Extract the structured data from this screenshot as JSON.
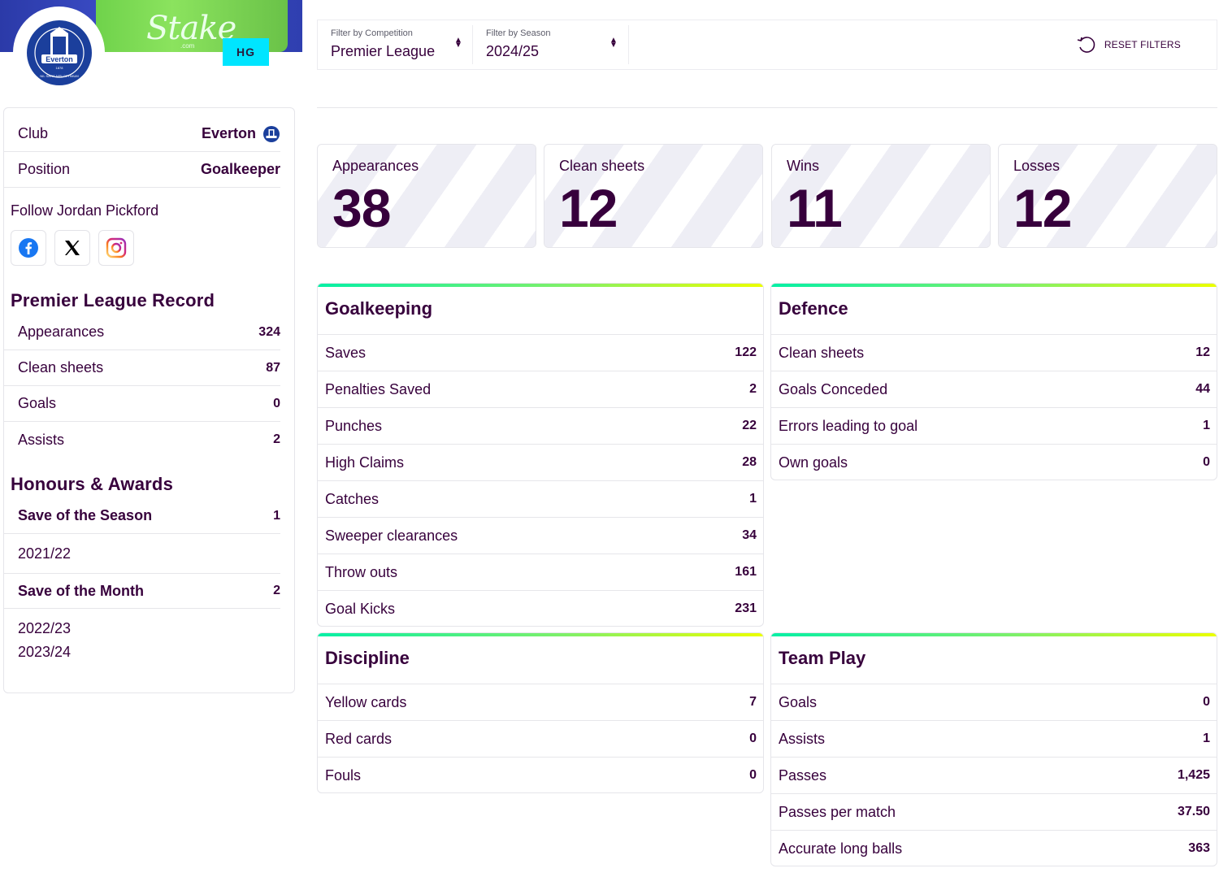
{
  "banner": {
    "sponsor_text": "Stake",
    "sponsor_sub": ".com",
    "hg_badge": "HG"
  },
  "club_badge": {
    "name": "Everton",
    "year": "1878",
    "motto": "NIL SATIS NISI OPTIMUM"
  },
  "profile": {
    "club_label": "Club",
    "club_value": "Everton",
    "position_label": "Position",
    "position_value": "Goalkeeper",
    "follow_text": "Follow Jordan Pickford",
    "socials": [
      "facebook-icon",
      "x-icon",
      "instagram-icon"
    ]
  },
  "pl_record": {
    "title": "Premier League Record",
    "rows": [
      {
        "label": "Appearances",
        "value": "324"
      },
      {
        "label": "Clean sheets",
        "value": "87"
      },
      {
        "label": "Goals",
        "value": "0"
      },
      {
        "label": "Assists",
        "value": "2"
      }
    ]
  },
  "honours": {
    "title": "Honours & Awards",
    "awards": [
      {
        "label": "Save of the Season",
        "count": "1",
        "seasons": [
          "2021/22"
        ]
      },
      {
        "label": "Save of the Month",
        "count": "2",
        "seasons": [
          "2022/23",
          "2023/24"
        ]
      }
    ]
  },
  "filters": {
    "competition_label": "Filter by Competition",
    "competition_value": "Premier League",
    "season_label": "Filter by Season",
    "season_value": "2024/25",
    "reset_label": "RESET FILTERS"
  },
  "top_stats": [
    {
      "label": "Appearances",
      "value": "38"
    },
    {
      "label": "Clean sheets",
      "value": "12"
    },
    {
      "label": "Wins",
      "value": "11"
    },
    {
      "label": "Losses",
      "value": "12"
    }
  ],
  "goalkeeping": {
    "title": "Goalkeeping",
    "rows": [
      {
        "label": "Saves",
        "value": "122"
      },
      {
        "label": "Penalties Saved",
        "value": "2"
      },
      {
        "label": "Punches",
        "value": "22"
      },
      {
        "label": "High Claims",
        "value": "28"
      },
      {
        "label": "Catches",
        "value": "1"
      },
      {
        "label": "Sweeper clearances",
        "value": "34"
      },
      {
        "label": "Throw outs",
        "value": "161"
      },
      {
        "label": "Goal Kicks",
        "value": "231"
      }
    ]
  },
  "defence": {
    "title": "Defence",
    "rows": [
      {
        "label": "Clean sheets",
        "value": "12"
      },
      {
        "label": "Goals Conceded",
        "value": "44"
      },
      {
        "label": "Errors leading to goal",
        "value": "1"
      },
      {
        "label": "Own goals",
        "value": "0"
      }
    ]
  },
  "discipline": {
    "title": "Discipline",
    "rows": [
      {
        "label": "Yellow cards",
        "value": "7"
      },
      {
        "label": "Red cards",
        "value": "0"
      },
      {
        "label": "Fouls",
        "value": "0"
      }
    ]
  },
  "team_play": {
    "title": "Team Play",
    "rows": [
      {
        "label": "Goals",
        "value": "0"
      },
      {
        "label": "Assists",
        "value": "1"
      },
      {
        "label": "Passes",
        "value": "1,425"
      },
      {
        "label": "Passes per match",
        "value": "37.50"
      },
      {
        "label": "Accurate long balls",
        "value": "363"
      }
    ]
  },
  "colors": {
    "brand": "#37003c",
    "accent_gradient_start": "#05f0a5",
    "accent_gradient_end": "#ebff00",
    "hg_badge": "#00e5ff",
    "everton_blue": "#1b3f9c"
  }
}
